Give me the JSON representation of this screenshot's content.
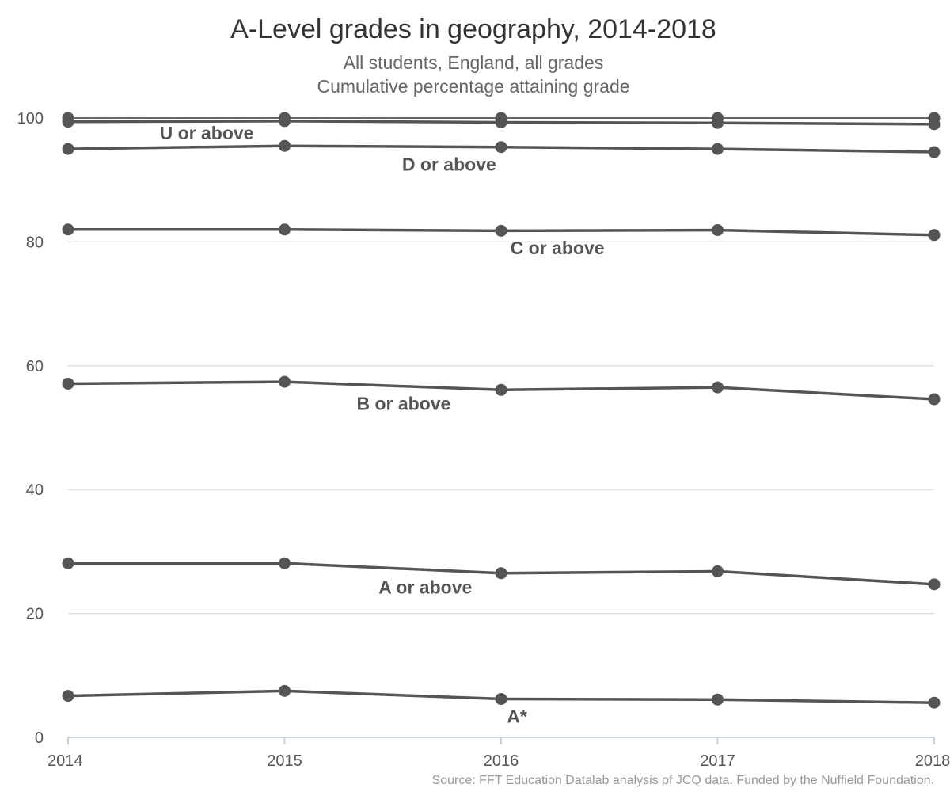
{
  "chart_data": {
    "type": "line",
    "title": "A-Level grades in geography, 2014-2018",
    "subtitle": [
      "All students, England, all grades",
      "Cumulative percentage attaining grade"
    ],
    "source": "Source: FFT Education Datalab analysis of JCQ data. Funded by the Nuffield Foundation.",
    "xlabel": "",
    "ylabel": "",
    "x": [
      2014,
      2015,
      2016,
      2017,
      2018
    ],
    "xticks": [
      "2014",
      "2015",
      "2016",
      "2017",
      "2018"
    ],
    "yticks": [
      "0",
      "20",
      "40",
      "60",
      "80",
      "100"
    ],
    "ylim": [
      0,
      100
    ],
    "grid": true,
    "colors": {
      "line": "#555555",
      "grid": "#dde2e8",
      "axis": "#c5d0dc"
    },
    "series": [
      {
        "name": "A*",
        "values": [
          6.7,
          7.5,
          6.2,
          6.1,
          5.6
        ]
      },
      {
        "name": "A or above",
        "values": [
          28.1,
          28.1,
          26.5,
          26.8,
          24.7
        ]
      },
      {
        "name": "B or above",
        "values": [
          57.1,
          57.4,
          56.1,
          56.5,
          54.6
        ]
      },
      {
        "name": "C or above",
        "values": [
          82.0,
          82.0,
          81.8,
          81.9,
          81.1
        ]
      },
      {
        "name": "D or above",
        "values": [
          95.0,
          95.5,
          95.3,
          95.0,
          94.5
        ]
      },
      {
        "name": "U or above",
        "values": [
          99.4,
          99.5,
          99.3,
          99.2,
          99.0
        ]
      },
      {
        "name": "",
        "values": [
          100,
          100,
          100,
          100,
          100
        ]
      }
    ]
  }
}
